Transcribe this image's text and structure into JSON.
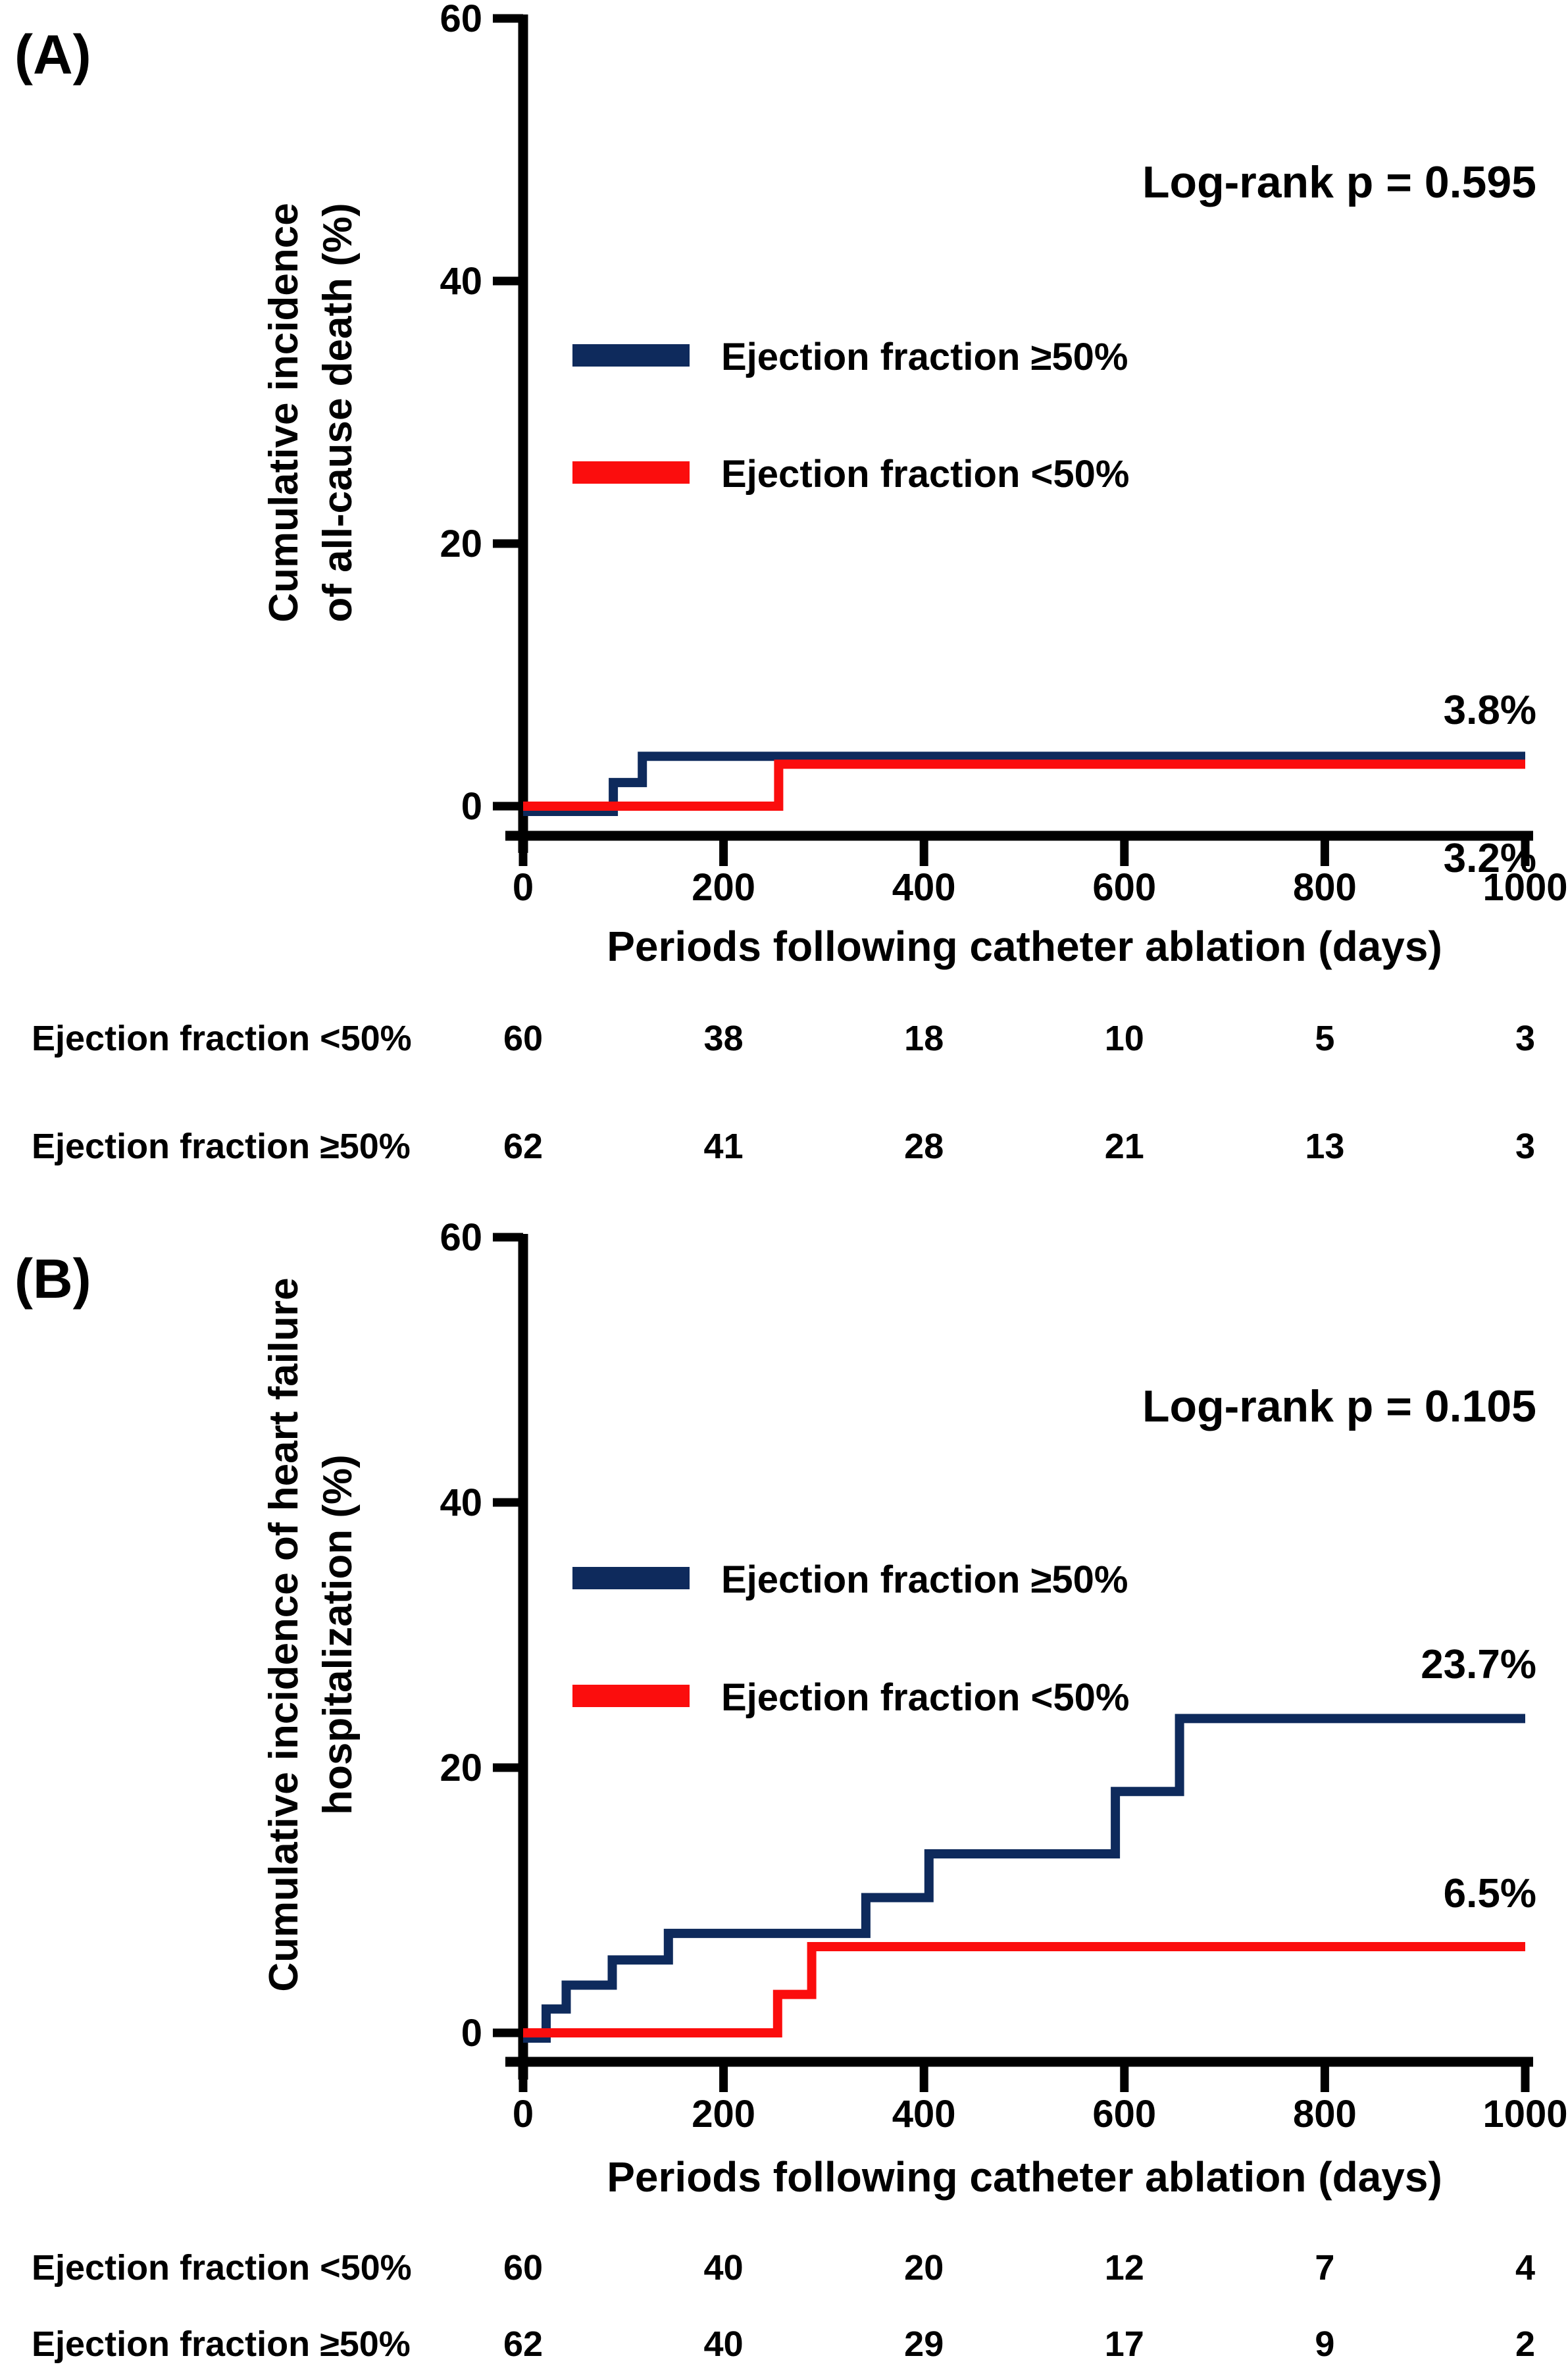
{
  "figure": {
    "background": "#ffffff",
    "axis_color": "#000000",
    "navy": "#0e2a5c",
    "red": "#fb0d0d"
  },
  "chart_data": [
    {
      "type": "line",
      "panel_label": "(A)",
      "logrank_label": "Log-rank p = 0.595",
      "ylabel_lines": [
        "Cumulative incidence",
        "of all-cause death (%)"
      ],
      "xlabel": "Periods following catheter ablation (days)",
      "ylim": [
        0,
        60
      ],
      "xlim": [
        0,
        1000
      ],
      "yticks": [
        0,
        20,
        40,
        60
      ],
      "xticks": [
        0,
        200,
        400,
        600,
        800,
        1000
      ],
      "legend_position": "upper-left-inside",
      "grid": false,
      "series": [
        {
          "name": "Ejection fraction ≥50%",
          "color": "#0e2a5c",
          "final_label": "3.8%",
          "points": [
            [
              0,
              0
            ],
            [
              90,
              0
            ],
            [
              90,
              1.8
            ],
            [
              119,
              1.8
            ],
            [
              119,
              3.8
            ],
            [
              1000,
              3.8
            ]
          ]
        },
        {
          "name": "Ejection fraction <50%",
          "color": "#fb0d0d",
          "final_label": "3.2%",
          "points": [
            [
              0,
              0
            ],
            [
              255,
              0
            ],
            [
              255,
              3.2
            ],
            [
              1000,
              3.2
            ]
          ]
        }
      ],
      "risk_table": {
        "rows": [
          {
            "label": "Ejection fraction <50%",
            "values": [
              "60",
              "38",
              "18",
              "10",
              "5",
              "3"
            ]
          },
          {
            "label": "Ejection fraction ≥50%",
            "values": [
              "62",
              "41",
              "28",
              "21",
              "13",
              "3"
            ]
          }
        ]
      }
    },
    {
      "type": "line",
      "panel_label": "(B)",
      "logrank_label": "Log-rank p = 0.105",
      "ylabel_lines": [
        "Cumulative incidence of heart failure",
        "hospitalization (%)"
      ],
      "xlabel": "Periods following catheter ablation (days)",
      "ylim": [
        0,
        60
      ],
      "xlim": [
        0,
        1000
      ],
      "yticks": [
        0,
        20,
        40,
        60
      ],
      "xticks": [
        0,
        200,
        400,
        600,
        800,
        1000
      ],
      "legend_position": "upper-left-inside",
      "grid": false,
      "series": [
        {
          "name": "Ejection fraction ≥50%",
          "color": "#0e2a5c",
          "final_label": "23.7%",
          "points": [
            [
              0,
              0
            ],
            [
              23,
              0
            ],
            [
              23,
              1.8
            ],
            [
              43,
              1.8
            ],
            [
              43,
              3.6
            ],
            [
              89,
              3.6
            ],
            [
              89,
              5.5
            ],
            [
              145,
              5.5
            ],
            [
              145,
              7.5
            ],
            [
              342,
              7.5
            ],
            [
              342,
              10.2
            ],
            [
              405,
              10.2
            ],
            [
              405,
              13.5
            ],
            [
              591,
              13.5
            ],
            [
              591,
              18.2
            ],
            [
              655,
              18.2
            ],
            [
              655,
              23.7
            ],
            [
              1000,
              23.7
            ]
          ]
        },
        {
          "name": "Ejection fraction <50%",
          "color": "#fb0d0d",
          "final_label": "6.5%",
          "points": [
            [
              0,
              0
            ],
            [
              254,
              0
            ],
            [
              254,
              2.9
            ],
            [
              288,
              2.9
            ],
            [
              288,
              6.5
            ],
            [
              1000,
              6.5
            ]
          ]
        }
      ],
      "risk_table": {
        "rows": [
          {
            "label": "Ejection fraction <50%",
            "values": [
              "60",
              "40",
              "20",
              "12",
              "7",
              "4"
            ]
          },
          {
            "label": "Ejection fraction ≥50%",
            "values": [
              "62",
              "40",
              "29",
              "17",
              "9",
              "2"
            ]
          }
        ]
      }
    }
  ]
}
